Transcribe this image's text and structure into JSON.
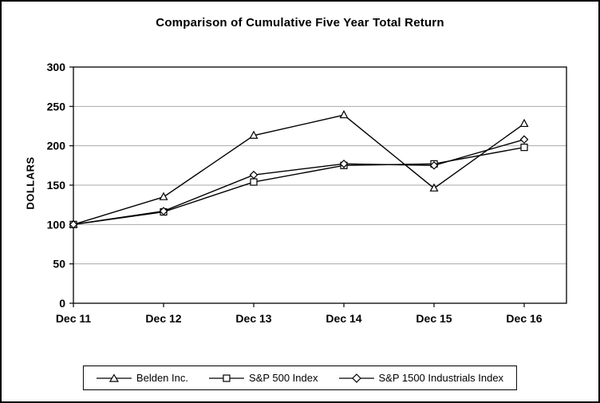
{
  "chart_data": {
    "type": "line",
    "title": "Comparison of Cumulative Five Year Total Return",
    "xlabel": "",
    "ylabel": "DOLLARS",
    "categories": [
      "Dec 11",
      "Dec 12",
      "Dec 13",
      "Dec 14",
      "Dec 15",
      "Dec 16"
    ],
    "series": [
      {
        "name": "Belden Inc.",
        "marker": "triangle",
        "values": [
          100,
          135,
          213,
          239,
          146,
          228
        ]
      },
      {
        "name": "S&P 500 Index",
        "marker": "square",
        "values": [
          100,
          116,
          154,
          175,
          177,
          198
        ]
      },
      {
        "name": "S&P 1500 Industrials Index",
        "marker": "diamond",
        "values": [
          100,
          117,
          163,
          177,
          175,
          208
        ]
      }
    ],
    "ylim": [
      0,
      300
    ],
    "yticks": [
      0,
      50,
      100,
      150,
      200,
      250,
      300
    ],
    "ytick_step": 50,
    "grid": "horizontal",
    "legend_position": "bottom",
    "line_color": "#000000",
    "grid_color": "#aaaaaa",
    "marker_fill": "#ffffff"
  }
}
